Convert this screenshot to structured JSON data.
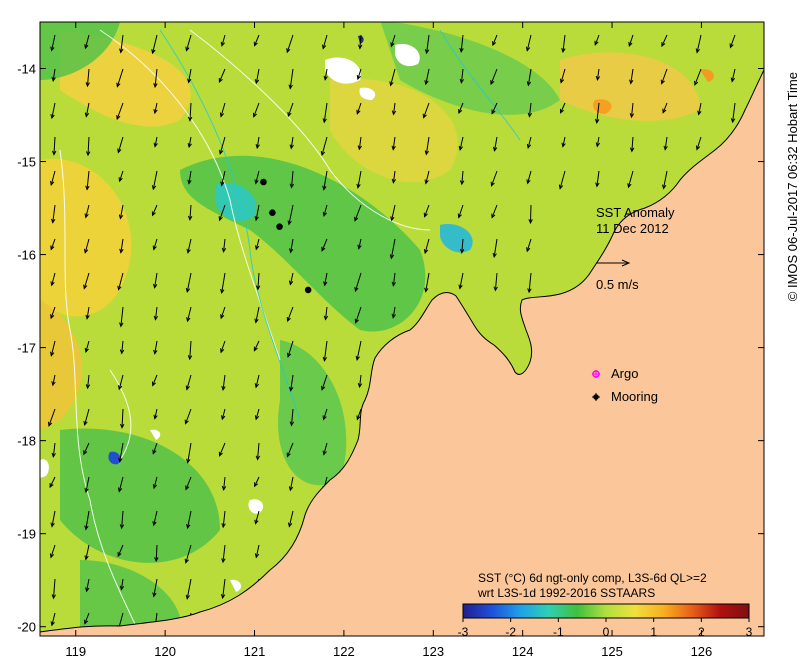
{
  "map": {
    "x_ticks": [
      "119",
      "120",
      "121",
      "122",
      "123",
      "124",
      "125",
      "126"
    ],
    "y_ticks": [
      "-14",
      "-15",
      "-16",
      "-17",
      "-18",
      "-19",
      "-20"
    ],
    "x_range": [
      118.6,
      126.7
    ],
    "y_range": [
      -20.1,
      -13.5
    ],
    "colors": {
      "land": "#fbc79a",
      "sea_base": "#b9dc3a",
      "frame": "#000000",
      "argo": "#ff00ff",
      "mooring": "#000000",
      "cloud": "#ffffff"
    }
  },
  "annotations": {
    "title_line1": "SST Anomaly",
    "title_line2": "11 Dec 2012",
    "scale_label": "0.5 m/s"
  },
  "legend": {
    "argo_label": "Argo",
    "mooring_label": "Mooring"
  },
  "colorbar": {
    "title_line1": "SST (°C) 6d ngt-only comp, L3S-6d QL>=2",
    "title_line2": "wrt L3S-1d 1992-2016 SSTAARS",
    "ticks": [
      "-3",
      "-2",
      "-1",
      "0",
      "1",
      "2",
      "3"
    ],
    "range": [
      -3,
      3
    ],
    "colors": [
      "#1f1f8f",
      "#1f4fd8",
      "#1fa0e8",
      "#2fd0b0",
      "#40c040",
      "#b0e040",
      "#f0e040",
      "#f8b020",
      "#e86018",
      "#b01010",
      "#801010"
    ]
  },
  "moorings": [
    {
      "lon": 121.1,
      "lat": -15.22
    },
    {
      "lon": 121.2,
      "lat": -15.55
    },
    {
      "lon": 121.28,
      "lat": -15.7
    },
    {
      "lon": 121.6,
      "lat": -16.38
    }
  ],
  "credit": "© IMOS 06-Jul-2017 06:32 Hobart Time"
}
